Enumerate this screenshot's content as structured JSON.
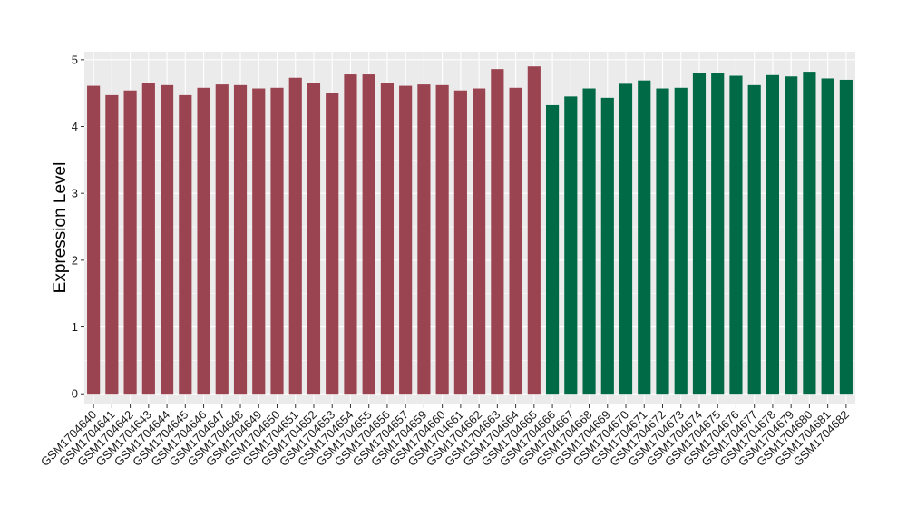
{
  "chart_data": {
    "type": "bar",
    "title": "",
    "xlabel": "",
    "ylabel": "Expression Level",
    "ylim": [
      -0.16,
      5.12
    ],
    "yticks": [
      0,
      1,
      2,
      3,
      4,
      5
    ],
    "grid": true,
    "background": "#ebebeb",
    "categories": [
      "GSM1704640",
      "GSM1704641",
      "GSM1704642",
      "GSM1704643",
      "GSM1704644",
      "GSM1704645",
      "GSM1704646",
      "GSM1704647",
      "GSM1704648",
      "GSM1704649",
      "GSM1704650",
      "GSM1704651",
      "GSM1704652",
      "GSM1704653",
      "GSM1704654",
      "GSM1704655",
      "GSM1704656",
      "GSM1704657",
      "GSM1704659",
      "GSM1704660",
      "GSM1704661",
      "GSM1704662",
      "GSM1704663",
      "GSM1704664",
      "GSM1704665",
      "GSM1704666",
      "GSM1704667",
      "GSM1704668",
      "GSM1704669",
      "GSM1704670",
      "GSM1704671",
      "GSM1704672",
      "GSM1704673",
      "GSM1704674",
      "GSM1704675",
      "GSM1704676",
      "GSM1704677",
      "GSM1704678",
      "GSM1704679",
      "GSM1704680",
      "GSM1704681",
      "GSM1704682"
    ],
    "values": [
      4.61,
      4.47,
      4.54,
      4.65,
      4.62,
      4.47,
      4.58,
      4.63,
      4.62,
      4.57,
      4.58,
      4.73,
      4.65,
      4.5,
      4.78,
      4.78,
      4.65,
      4.61,
      4.63,
      4.62,
      4.54,
      4.57,
      4.86,
      4.58,
      4.9,
      4.32,
      4.45,
      4.57,
      4.43,
      4.64,
      4.69,
      4.57,
      4.58,
      4.8,
      4.8,
      4.76,
      4.62,
      4.77,
      4.75,
      4.82,
      4.72,
      4.7
    ],
    "groups": [
      0,
      0,
      0,
      0,
      0,
      0,
      0,
      0,
      0,
      0,
      0,
      0,
      0,
      0,
      0,
      0,
      0,
      0,
      0,
      0,
      0,
      0,
      0,
      0,
      0,
      1,
      1,
      1,
      1,
      1,
      1,
      1,
      1,
      1,
      1,
      1,
      1,
      1,
      1,
      1,
      1,
      1
    ],
    "colors": [
      "#9b4451",
      "#006a46"
    ]
  }
}
